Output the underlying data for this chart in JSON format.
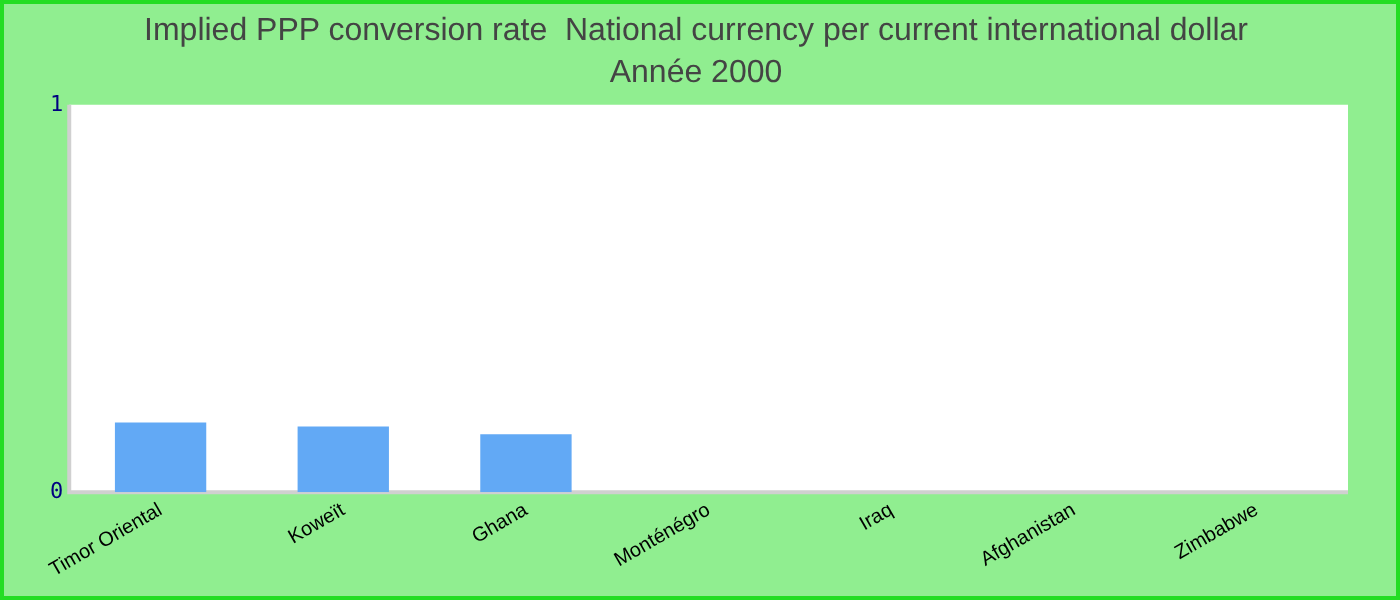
{
  "chart_data": {
    "type": "bar",
    "title": "Implied PPP conversion rate  National currency per current international dollar",
    "subtitle": "Année 2000",
    "categories": [
      "Timor Oriental",
      "Koweït",
      "Ghana",
      "Monténégro",
      "Iraq",
      "Afghanistan",
      "Zimbabwe"
    ],
    "values": [
      0.18,
      0.17,
      0.15,
      null,
      null,
      null,
      null
    ],
    "color": "#62a9f5",
    "ylim": [
      0,
      1
    ],
    "yticks": [
      0,
      1
    ],
    "grid": false,
    "legend": false
  }
}
